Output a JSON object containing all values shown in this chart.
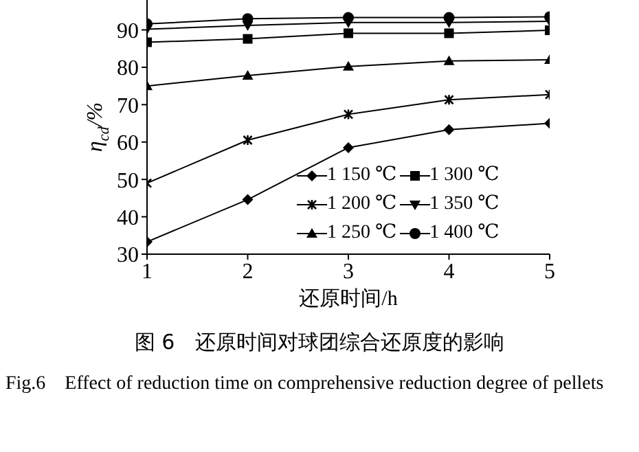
{
  "chart_data": {
    "type": "line",
    "title": "图 6　还原时间对球团综合还原度的影响",
    "xlabel": "还原时间/h",
    "ylabel": "η$_{cd}$/%",
    "annotations": [
      "Fig.6　Effect of reduction time on comprehensive reduction degree of pellets"
    ],
    "x": [
      1,
      2,
      3,
      4,
      5
    ],
    "xlim": [
      1,
      5
    ],
    "xticks": [
      1,
      2,
      3,
      4,
      5
    ],
    "ylim": [
      30,
      98
    ],
    "yticks": [
      30,
      40,
      50,
      60,
      70,
      80,
      90
    ],
    "grid": false,
    "legend": "bottom right",
    "series": [
      {
        "name": "1 150 ℃",
        "color": "#000000",
        "marker": "diamond",
        "values": [
          33.3,
          44.6,
          58.5,
          63.3,
          65
        ]
      },
      {
        "name": "1 200 ℃",
        "color": "#000000",
        "marker": "cross",
        "values": [
          49,
          60.5,
          67.4,
          71.3,
          72.7
        ]
      },
      {
        "name": "1 250 ℃",
        "color": "#000000",
        "marker": "triangle",
        "values": [
          75,
          77.8,
          80.2,
          81.7,
          82
        ]
      },
      {
        "name": "1 300 ℃",
        "color": "#000000",
        "marker": "square",
        "values": [
          86.7,
          87.6,
          89.1,
          89.1,
          89.9
        ]
      },
      {
        "name": "1 350 ℃",
        "color": "#000000",
        "marker": "triangle-down",
        "values": [
          90.2,
          91.2,
          92,
          92,
          92.3
        ]
      },
      {
        "name": "1 400 ℃",
        "color": "#000000",
        "marker": "circle",
        "values": [
          91.6,
          93,
          93.3,
          93.3,
          93.5
        ]
      }
    ]
  }
}
